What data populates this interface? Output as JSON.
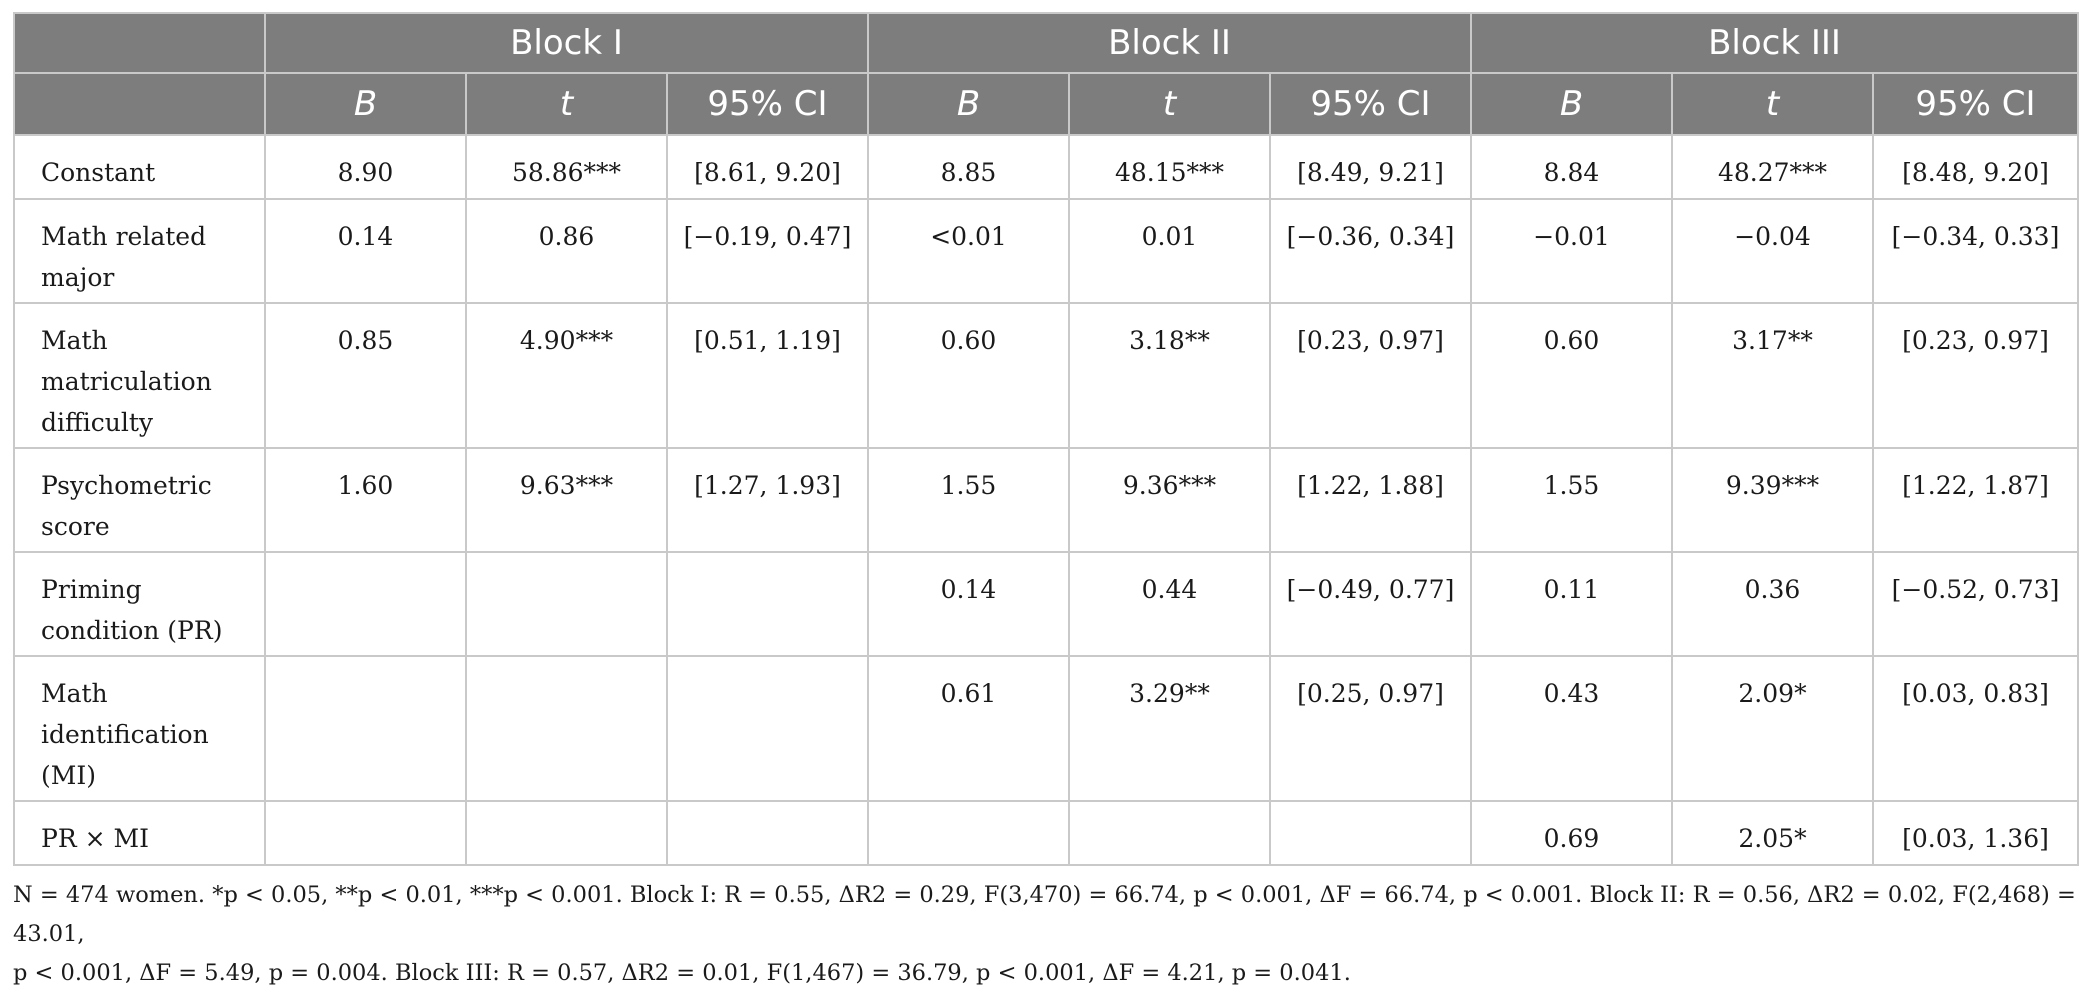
{
  "header": {
    "blocks": [
      "Block I",
      "Block II",
      "Block III"
    ],
    "subheads": [
      "B",
      "t",
      "95% CI",
      "B",
      "t",
      "95% CI",
      "B",
      "t",
      "95% CI"
    ]
  },
  "rows": [
    {
      "label": "Constant",
      "cells": [
        "8.90",
        "58.86***",
        "[8.61, 9.20]",
        "8.85",
        "48.15***",
        "[8.49, 9.21]",
        "8.84",
        "48.27***",
        "[8.48, 9.20]"
      ]
    },
    {
      "label": "Math related major",
      "cells": [
        "0.14",
        "0.86",
        "[−0.19, 0.47]",
        "<0.01",
        "0.01",
        "[−0.36, 0.34]",
        "−0.01",
        "−0.04",
        "[−0.34, 0.33]"
      ]
    },
    {
      "label": "Math matriculation difficulty",
      "cells": [
        "0.85",
        "4.90***",
        "[0.51, 1.19]",
        "0.60",
        "3.18**",
        "[0.23, 0.97]",
        "0.60",
        "3.17**",
        "[0.23, 0.97]"
      ]
    },
    {
      "label": "Psychometric score",
      "cells": [
        "1.60",
        "9.63***",
        "[1.27, 1.93]",
        "1.55",
        "9.36***",
        "[1.22, 1.88]",
        "1.55",
        "9.39***",
        "[1.22, 1.87]"
      ]
    },
    {
      "label": "Priming condition (PR)",
      "cells": [
        "",
        "",
        "",
        "0.14",
        "0.44",
        "[−0.49, 0.77]",
        "0.11",
        "0.36",
        "[−0.52, 0.73]"
      ]
    },
    {
      "label": "Math identification (MI)",
      "cells": [
        "",
        "",
        "",
        "0.61",
        "3.29**",
        "[0.25, 0.97]",
        "0.43",
        "2.09*",
        "[0.03, 0.83]"
      ]
    },
    {
      "label": "PR × MI",
      "cells": [
        "",
        "",
        "",
        "",
        "",
        "",
        "0.69",
        "2.05*",
        "[0.03, 1.36]"
      ]
    }
  ],
  "note": {
    "line1": "N = 474 women. *p < 0.05, **p < 0.01, ***p < 0.001. Block I: R = 0.55, ΔR2 = 0.29, F(3,470) = 66.74, p < 0.001, ΔF = 66.74, p < 0.001. Block II: R = 0.56, ΔR2 = 0.02, F(2,468) = 43.01,",
    "line2": "p < 0.001, ΔF = 5.49, p = 0.004. Block III: R = 0.57, ΔR2 = 0.01, F(1,467) = 36.79, p < 0.001, ΔF = 4.21, p = 0.041."
  }
}
